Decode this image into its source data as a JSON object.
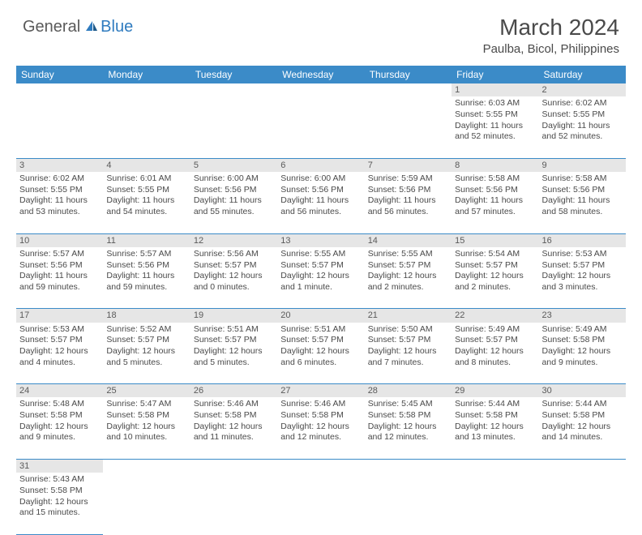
{
  "logo": {
    "general": "General",
    "blue": "Blue"
  },
  "title": "March 2024",
  "location": "Paulba, Bicol, Philippines",
  "colors": {
    "headerBg": "#3b8bc8",
    "headerText": "#ffffff",
    "dayBg": "#e6e6e6",
    "border": "#3b8bc8",
    "text": "#4a4a4a",
    "accent": "#2f7bbf"
  },
  "weekdays": [
    "Sunday",
    "Monday",
    "Tuesday",
    "Wednesday",
    "Thursday",
    "Friday",
    "Saturday"
  ],
  "weeks": [
    [
      null,
      null,
      null,
      null,
      null,
      {
        "n": "1",
        "sr": "Sunrise: 6:03 AM",
        "ss": "Sunset: 5:55 PM",
        "dl": "Daylight: 11 hours and 52 minutes."
      },
      {
        "n": "2",
        "sr": "Sunrise: 6:02 AM",
        "ss": "Sunset: 5:55 PM",
        "dl": "Daylight: 11 hours and 52 minutes."
      }
    ],
    [
      {
        "n": "3",
        "sr": "Sunrise: 6:02 AM",
        "ss": "Sunset: 5:55 PM",
        "dl": "Daylight: 11 hours and 53 minutes."
      },
      {
        "n": "4",
        "sr": "Sunrise: 6:01 AM",
        "ss": "Sunset: 5:55 PM",
        "dl": "Daylight: 11 hours and 54 minutes."
      },
      {
        "n": "5",
        "sr": "Sunrise: 6:00 AM",
        "ss": "Sunset: 5:56 PM",
        "dl": "Daylight: 11 hours and 55 minutes."
      },
      {
        "n": "6",
        "sr": "Sunrise: 6:00 AM",
        "ss": "Sunset: 5:56 PM",
        "dl": "Daylight: 11 hours and 56 minutes."
      },
      {
        "n": "7",
        "sr": "Sunrise: 5:59 AM",
        "ss": "Sunset: 5:56 PM",
        "dl": "Daylight: 11 hours and 56 minutes."
      },
      {
        "n": "8",
        "sr": "Sunrise: 5:58 AM",
        "ss": "Sunset: 5:56 PM",
        "dl": "Daylight: 11 hours and 57 minutes."
      },
      {
        "n": "9",
        "sr": "Sunrise: 5:58 AM",
        "ss": "Sunset: 5:56 PM",
        "dl": "Daylight: 11 hours and 58 minutes."
      }
    ],
    [
      {
        "n": "10",
        "sr": "Sunrise: 5:57 AM",
        "ss": "Sunset: 5:56 PM",
        "dl": "Daylight: 11 hours and 59 minutes."
      },
      {
        "n": "11",
        "sr": "Sunrise: 5:57 AM",
        "ss": "Sunset: 5:56 PM",
        "dl": "Daylight: 11 hours and 59 minutes."
      },
      {
        "n": "12",
        "sr": "Sunrise: 5:56 AM",
        "ss": "Sunset: 5:57 PM",
        "dl": "Daylight: 12 hours and 0 minutes."
      },
      {
        "n": "13",
        "sr": "Sunrise: 5:55 AM",
        "ss": "Sunset: 5:57 PM",
        "dl": "Daylight: 12 hours and 1 minute."
      },
      {
        "n": "14",
        "sr": "Sunrise: 5:55 AM",
        "ss": "Sunset: 5:57 PM",
        "dl": "Daylight: 12 hours and 2 minutes."
      },
      {
        "n": "15",
        "sr": "Sunrise: 5:54 AM",
        "ss": "Sunset: 5:57 PM",
        "dl": "Daylight: 12 hours and 2 minutes."
      },
      {
        "n": "16",
        "sr": "Sunrise: 5:53 AM",
        "ss": "Sunset: 5:57 PM",
        "dl": "Daylight: 12 hours and 3 minutes."
      }
    ],
    [
      {
        "n": "17",
        "sr": "Sunrise: 5:53 AM",
        "ss": "Sunset: 5:57 PM",
        "dl": "Daylight: 12 hours and 4 minutes."
      },
      {
        "n": "18",
        "sr": "Sunrise: 5:52 AM",
        "ss": "Sunset: 5:57 PM",
        "dl": "Daylight: 12 hours and 5 minutes."
      },
      {
        "n": "19",
        "sr": "Sunrise: 5:51 AM",
        "ss": "Sunset: 5:57 PM",
        "dl": "Daylight: 12 hours and 5 minutes."
      },
      {
        "n": "20",
        "sr": "Sunrise: 5:51 AM",
        "ss": "Sunset: 5:57 PM",
        "dl": "Daylight: 12 hours and 6 minutes."
      },
      {
        "n": "21",
        "sr": "Sunrise: 5:50 AM",
        "ss": "Sunset: 5:57 PM",
        "dl": "Daylight: 12 hours and 7 minutes."
      },
      {
        "n": "22",
        "sr": "Sunrise: 5:49 AM",
        "ss": "Sunset: 5:57 PM",
        "dl": "Daylight: 12 hours and 8 minutes."
      },
      {
        "n": "23",
        "sr": "Sunrise: 5:49 AM",
        "ss": "Sunset: 5:58 PM",
        "dl": "Daylight: 12 hours and 9 minutes."
      }
    ],
    [
      {
        "n": "24",
        "sr": "Sunrise: 5:48 AM",
        "ss": "Sunset: 5:58 PM",
        "dl": "Daylight: 12 hours and 9 minutes."
      },
      {
        "n": "25",
        "sr": "Sunrise: 5:47 AM",
        "ss": "Sunset: 5:58 PM",
        "dl": "Daylight: 12 hours and 10 minutes."
      },
      {
        "n": "26",
        "sr": "Sunrise: 5:46 AM",
        "ss": "Sunset: 5:58 PM",
        "dl": "Daylight: 12 hours and 11 minutes."
      },
      {
        "n": "27",
        "sr": "Sunrise: 5:46 AM",
        "ss": "Sunset: 5:58 PM",
        "dl": "Daylight: 12 hours and 12 minutes."
      },
      {
        "n": "28",
        "sr": "Sunrise: 5:45 AM",
        "ss": "Sunset: 5:58 PM",
        "dl": "Daylight: 12 hours and 12 minutes."
      },
      {
        "n": "29",
        "sr": "Sunrise: 5:44 AM",
        "ss": "Sunset: 5:58 PM",
        "dl": "Daylight: 12 hours and 13 minutes."
      },
      {
        "n": "30",
        "sr": "Sunrise: 5:44 AM",
        "ss": "Sunset: 5:58 PM",
        "dl": "Daylight: 12 hours and 14 minutes."
      }
    ],
    [
      {
        "n": "31",
        "sr": "Sunrise: 5:43 AM",
        "ss": "Sunset: 5:58 PM",
        "dl": "Daylight: 12 hours and 15 minutes."
      },
      null,
      null,
      null,
      null,
      null,
      null
    ]
  ]
}
